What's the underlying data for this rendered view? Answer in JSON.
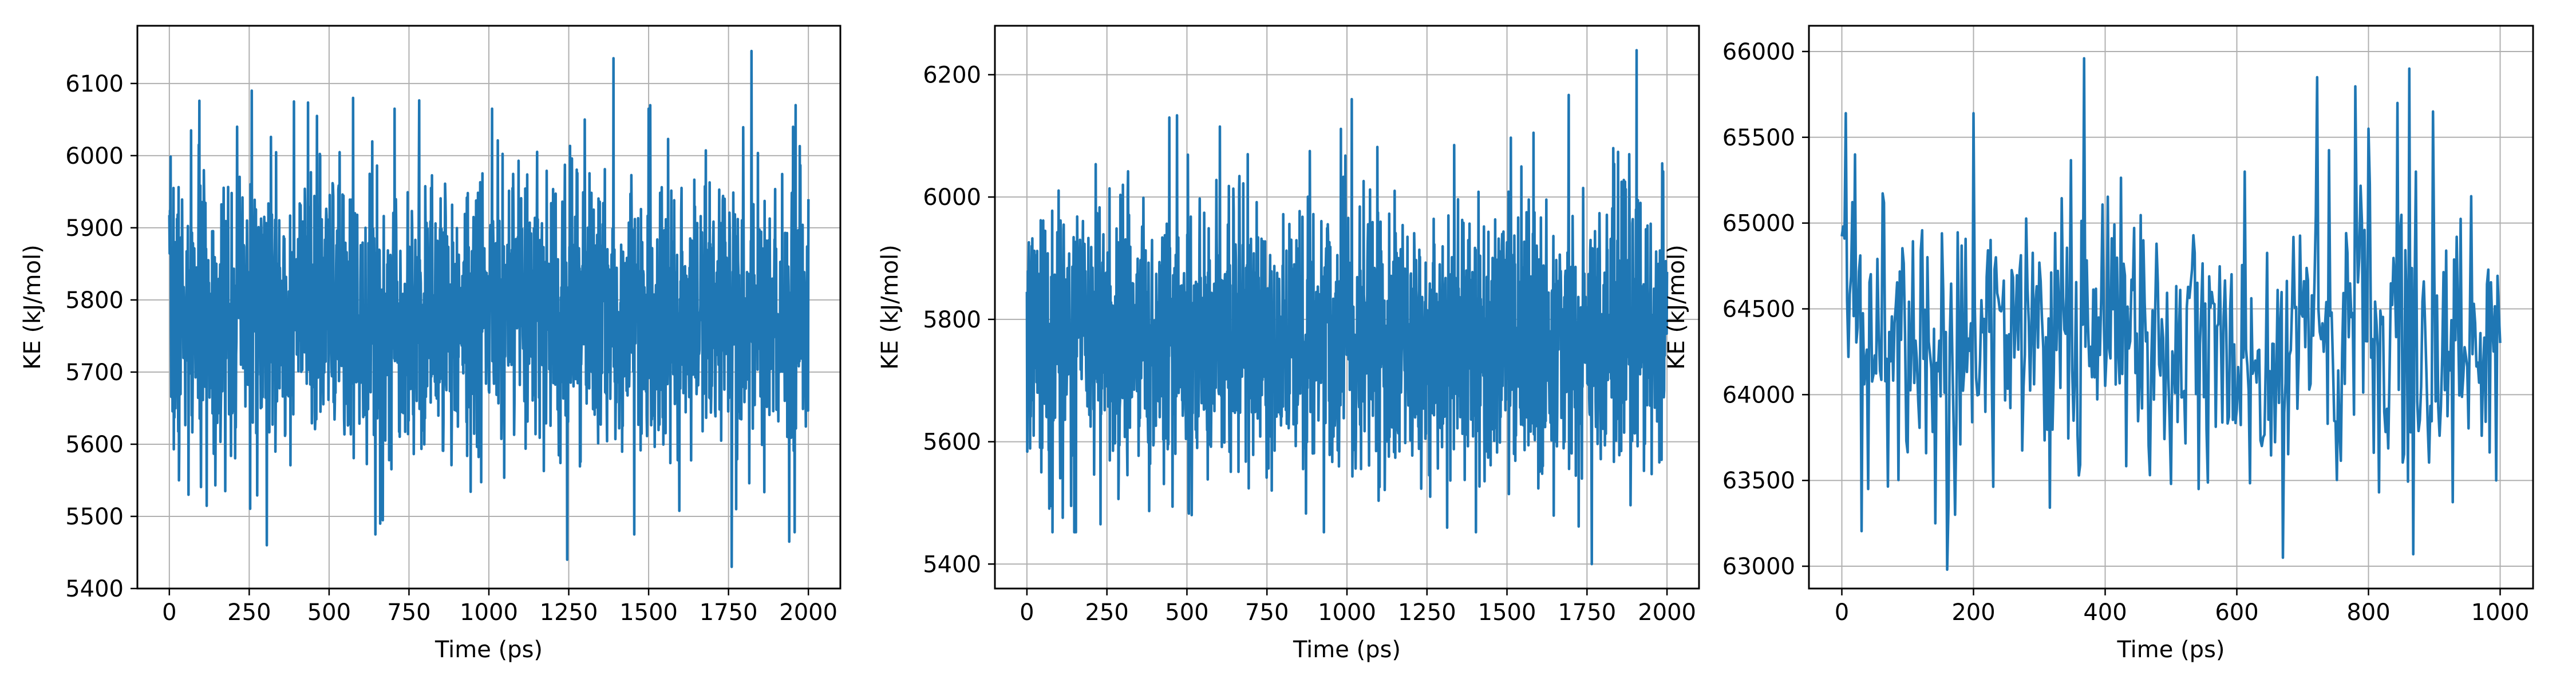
{
  "chart_data": [
    {
      "type": "line",
      "xlabel": "Time (ps)",
      "ylabel": "KE (kJ/mol)",
      "xlim": [
        -100,
        2100
      ],
      "ylim": [
        5400,
        6180
      ],
      "xticks": [
        0,
        250,
        500,
        750,
        1000,
        1250,
        1500,
        1750,
        2000
      ],
      "yticks": [
        5400,
        5500,
        5600,
        5700,
        5800,
        5900,
        6000,
        6100
      ],
      "grid": true,
      "color": "#1f77b4",
      "n_points": 2001,
      "x_range": [
        0,
        2000
      ],
      "mean": 5780,
      "std": 95,
      "seed": 7,
      "peaks": [
        [
          18,
          5880
        ],
        [
          30,
          5550
        ],
        [
          60,
          5530
        ],
        [
          92,
          6015
        ],
        [
          175,
          5535
        ],
        [
          212,
          6040
        ],
        [
          258,
          6090
        ],
        [
          305,
          5460
        ],
        [
          390,
          6075
        ],
        [
          462,
          6055
        ],
        [
          575,
          6080
        ],
        [
          645,
          5475
        ],
        [
          660,
          5490
        ],
        [
          705,
          6065
        ],
        [
          1010,
          6065
        ],
        [
          1245,
          5440
        ],
        [
          1300,
          6050
        ],
        [
          1390,
          6135
        ],
        [
          1455,
          5475
        ],
        [
          1500,
          6065
        ],
        [
          1760,
          5430
        ],
        [
          1822,
          6145
        ],
        [
          1940,
          5465
        ],
        [
          1960,
          6070
        ]
      ]
    },
    {
      "type": "line",
      "xlabel": "Time (ps)",
      "ylabel": "KE (kJ/mol)",
      "xlim": [
        -100,
        2100
      ],
      "ylim": [
        5360,
        6280
      ],
      "xticks": [
        0,
        250,
        500,
        750,
        1000,
        1250,
        1500,
        1750,
        2000
      ],
      "yticks": [
        5400,
        5600,
        5800,
        6000,
        6200
      ],
      "grid": true,
      "color": "#1f77b4",
      "n_points": 2001,
      "x_range": [
        0,
        2000
      ],
      "mean": 5770,
      "std": 110,
      "seed": 21,
      "peaks": [
        [
          15,
          5920
        ],
        [
          45,
          5550
        ],
        [
          75,
          5495
        ],
        [
          230,
          5465
        ],
        [
          300,
          6020
        ],
        [
          445,
          6130
        ],
        [
          515,
          5480
        ],
        [
          690,
          6070
        ],
        [
          1015,
          6160
        ],
        [
          1260,
          5510
        ],
        [
          1335,
          6085
        ],
        [
          1545,
          6050
        ],
        [
          1765,
          5400
        ],
        [
          1832,
          6080
        ],
        [
          1882,
          6070
        ],
        [
          1905,
          6240
        ],
        [
          1985,
          6055
        ]
      ]
    },
    {
      "type": "line",
      "xlabel": "Time (ps)",
      "ylabel": "KE (kJ/mol)",
      "xlim": [
        -50,
        1050
      ],
      "ylim": [
        62870,
        66150
      ],
      "xticks": [
        0,
        200,
        400,
        600,
        800,
        1000
      ],
      "yticks": [
        63000,
        63500,
        64000,
        64500,
        65000,
        65500,
        66000
      ],
      "grid": true,
      "color": "#1f77b4",
      "n_points": 501,
      "x_range": [
        0,
        1000
      ],
      "mean": 64330,
      "std": 420,
      "seed": 42,
      "peaks": [
        [
          2,
          64980
        ],
        [
          6,
          65640
        ],
        [
          10,
          64220
        ],
        [
          20,
          65400
        ],
        [
          40,
          63450
        ],
        [
          142,
          63250
        ],
        [
          160,
          62980
        ],
        [
          172,
          63300
        ],
        [
          200,
          65640
        ],
        [
          368,
          65960
        ],
        [
          500,
          63480
        ],
        [
          542,
          63450
        ],
        [
          612,
          65300
        ],
        [
          670,
          63050
        ],
        [
          722,
          65850
        ],
        [
          782,
          65050
        ],
        [
          800,
          65550
        ],
        [
          844,
          65700
        ],
        [
          862,
          65900
        ],
        [
          868,
          63070
        ],
        [
          898,
          65650
        ],
        [
          994,
          63500
        ]
      ]
    }
  ]
}
